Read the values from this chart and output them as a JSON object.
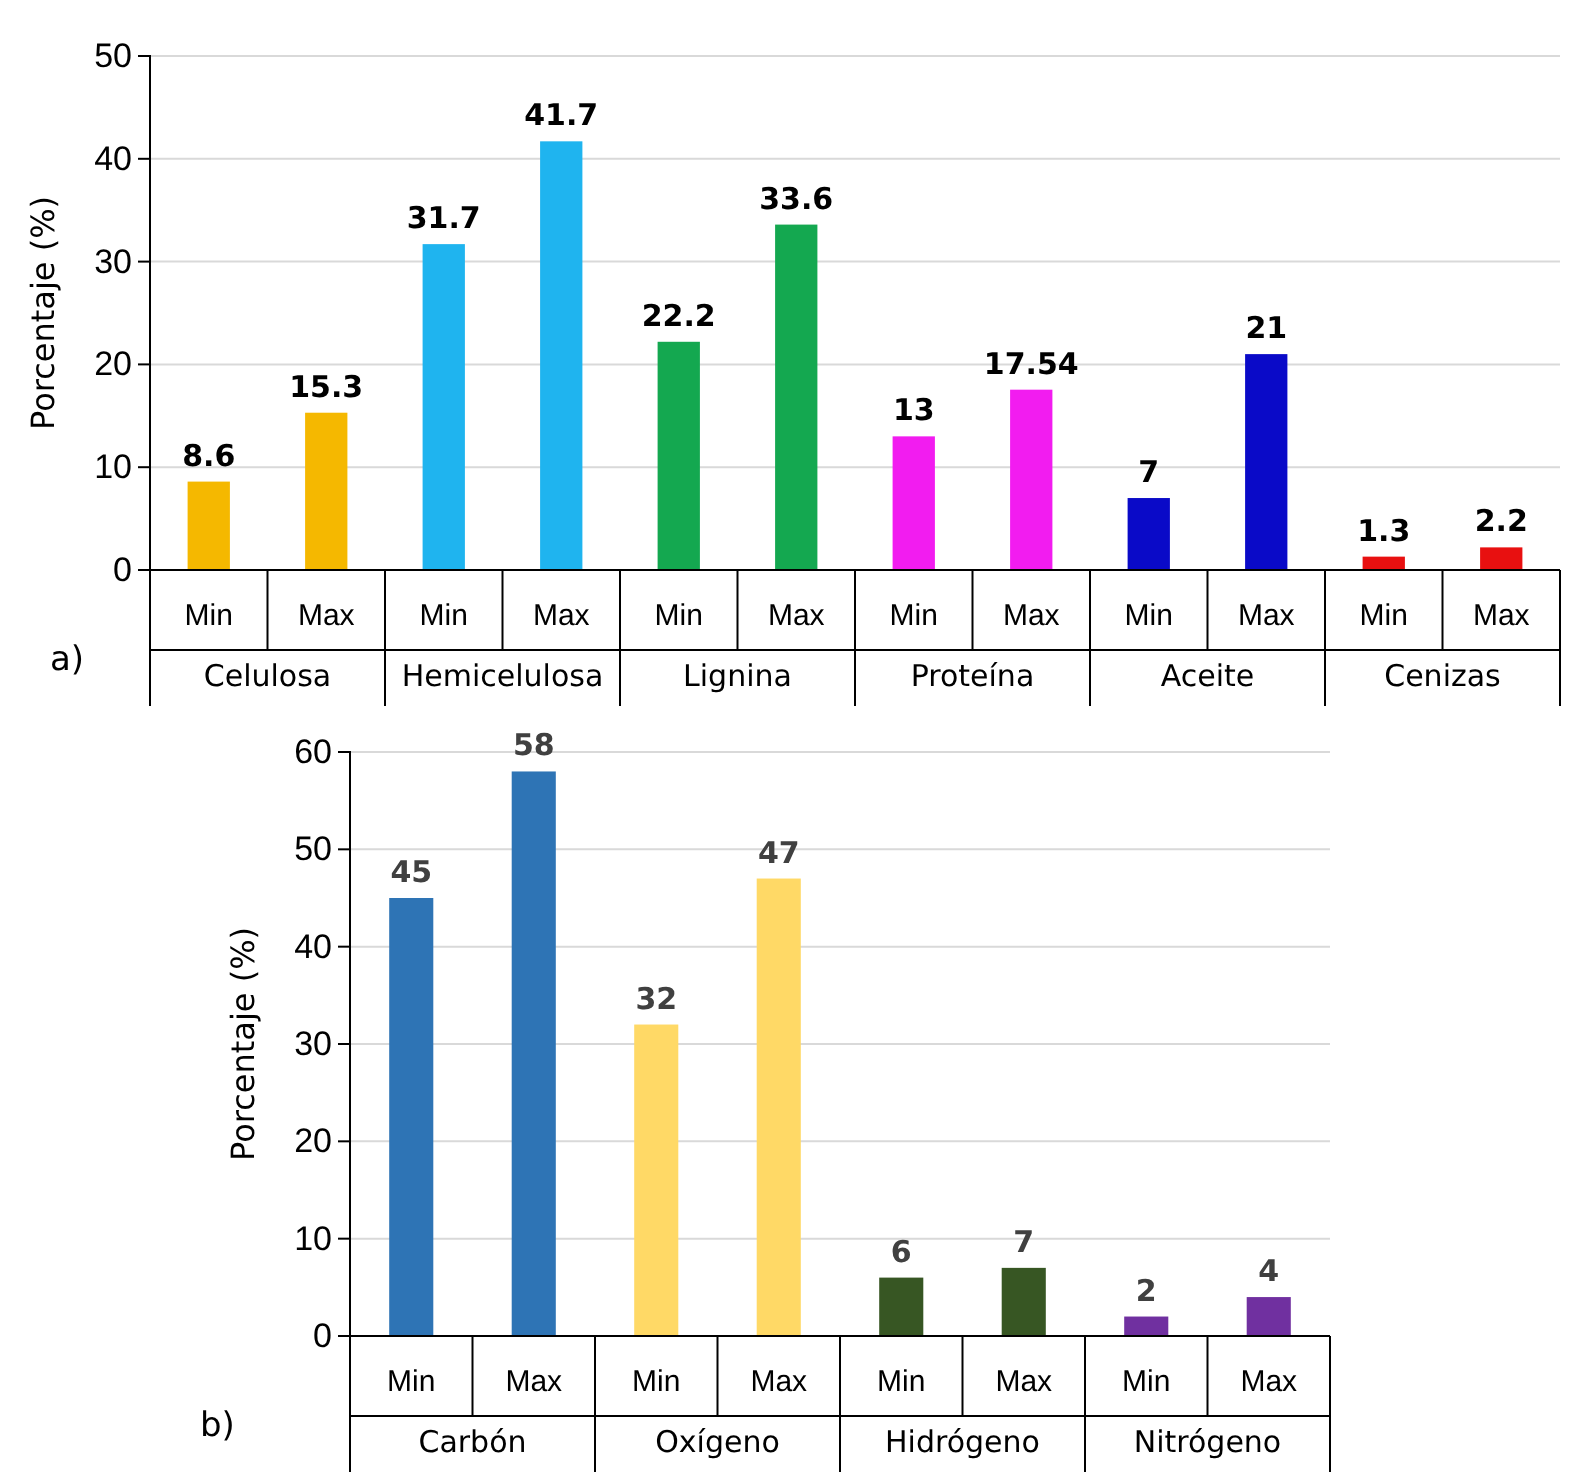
{
  "chart_data": [
    {
      "type": "bar",
      "ylabel": "Porcentaje (%)",
      "categories": [
        "Min",
        "Max",
        "Min",
        "Max",
        "Min",
        "Max",
        "Min",
        "Max",
        "Min",
        "Max",
        "Min",
        "Max"
      ],
      "values": [
        8.6,
        15.3,
        31.7,
        41.7,
        22.2,
        33.6,
        13,
        17.54,
        7,
        21,
        1.3,
        2.2
      ],
      "colors": [
        "#f5b800",
        "#f5b800",
        "#1fb4ef",
        "#1fb4ef",
        "#14a850",
        "#14a850",
        "#f21cf0",
        "#f21cf0",
        "#0a0ac8",
        "#0a0ac8",
        "#e81010",
        "#e81010"
      ],
      "ylim": [
        0,
        50
      ],
      "yticks": [
        0,
        10,
        20,
        30,
        40,
        50
      ],
      "grid": "y",
      "data_labels": true,
      "annotations": [
        "a)",
        "Celulosa",
        "Hemicelulosa",
        "Lignina",
        "Proteína",
        "Aceite",
        "Cenizas"
      ]
    },
    {
      "type": "bar",
      "ylabel": "Porcentaje (%)",
      "categories": [
        "Min",
        "Max",
        "Min",
        "Max",
        "Min",
        "Max",
        "Min",
        "Max"
      ],
      "values": [
        45,
        58,
        32,
        47,
        6,
        7,
        2,
        4
      ],
      "colors": [
        "#2e74b5",
        "#2e74b5",
        "#ffd966",
        "#ffd966",
        "#375623",
        "#375623",
        "#7030a0",
        "#7030a0"
      ],
      "ylim": [
        0,
        60
      ],
      "yticks": [
        0,
        10,
        20,
        30,
        40,
        50,
        60
      ],
      "grid": "y",
      "data_labels": true,
      "annotations": [
        "b)",
        "Carbón",
        "Oxígeno",
        "Hidrógeno",
        "Nitrógeno"
      ]
    }
  ]
}
